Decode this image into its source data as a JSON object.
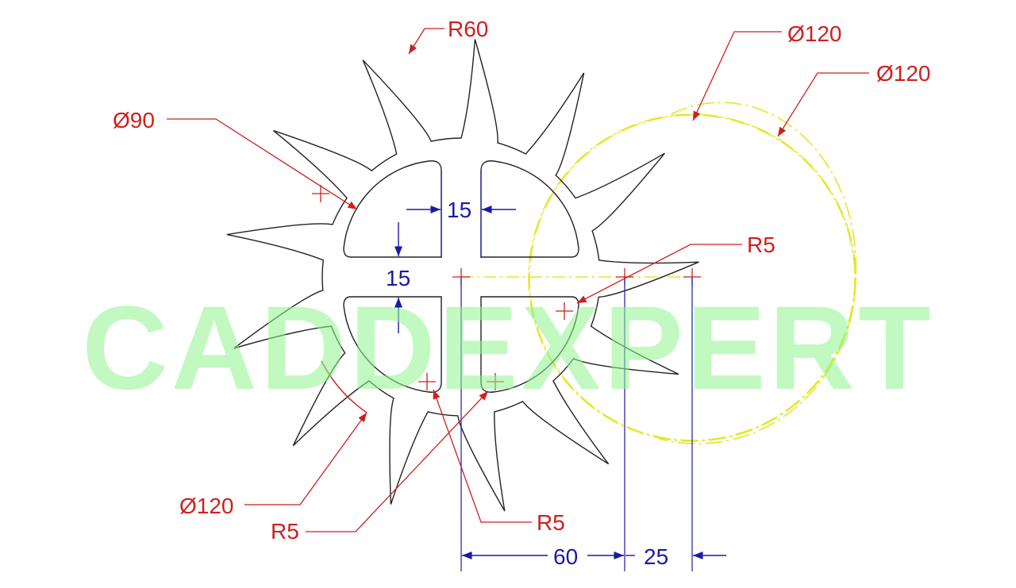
{
  "watermark": "CADDEXPERT",
  "colors": {
    "geometry": "#222222",
    "leader": "#d01f1f",
    "dimension": "#1a1aa8",
    "construction": "#e6e62a",
    "watermark": "#8ff58f"
  },
  "annotations": {
    "r60": "R60",
    "dia120_top": "Ø120",
    "dia120_right": "Ø120",
    "dia90": "Ø90",
    "r5_right": "R5",
    "dia120_bottom": "Ø120",
    "r5_bottom_left": "R5",
    "r5_bottom_right": "R5"
  },
  "dimensions": {
    "slot_width": "15",
    "slot_height": "15",
    "offset_60": "60",
    "offset_25": "25"
  }
}
